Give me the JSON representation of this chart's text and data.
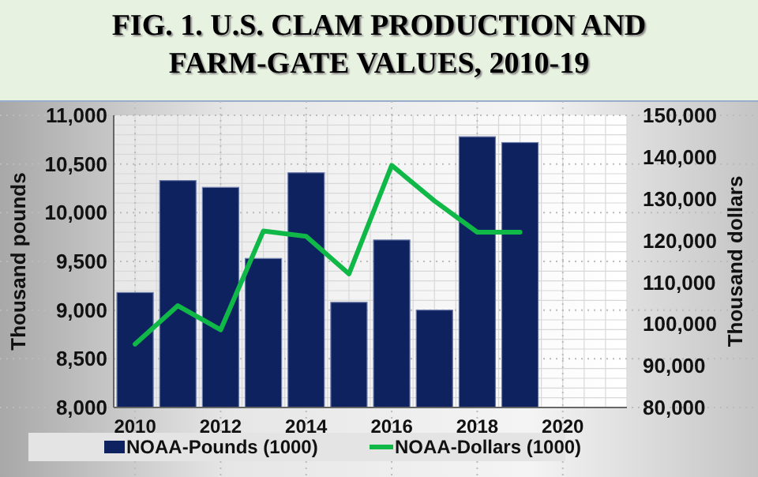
{
  "chart_data": {
    "type": "bar",
    "title": "FIG. 1. U.S. CLAM PRODUCTION AND FARM-GATE VALUES, 2010-19",
    "ylabel": "Thousand pounds",
    "y2label": "Thousand dollars",
    "x": [
      2010,
      2011,
      2012,
      2013,
      2014,
      2015,
      2016,
      2017,
      2018,
      2019
    ],
    "xlim": [
      2009.5,
      2021.5
    ],
    "xticks": [
      2010,
      2012,
      2014,
      2016,
      2018,
      2020
    ],
    "ylim": [
      8000,
      11000
    ],
    "yticks": [
      {
        "value": 8000,
        "label": "8,000"
      },
      {
        "value": 8500,
        "label": "8,500"
      },
      {
        "value": 9000,
        "label": "9,000"
      },
      {
        "value": 9500,
        "label": "9,500"
      },
      {
        "value": 10000,
        "label": "10,000"
      },
      {
        "value": 10500,
        "label": "10,500"
      },
      {
        "value": 11000,
        "label": "11,000"
      }
    ],
    "y2lim": [
      80000,
      150000
    ],
    "y2ticks": [
      {
        "value": 80000,
        "label": "80,000"
      },
      {
        "value": 90000,
        "label": "90,000"
      },
      {
        "value": 100000,
        "label": "100,000"
      },
      {
        "value": 110000,
        "label": "110,000"
      },
      {
        "value": 120000,
        "label": "120,000"
      },
      {
        "value": 130000,
        "label": "130,000"
      },
      {
        "value": 140000,
        "label": "140,000"
      },
      {
        "value": 150000,
        "label": "150,000"
      }
    ],
    "series": [
      {
        "name": "NOAA-Pounds (1000)",
        "color": "#0f2260",
        "values": [
          9180,
          10330,
          10260,
          9530,
          10410,
          9080,
          9720,
          9000,
          10780,
          10720
        ]
      },
      {
        "name": "NOAA-Dollars (1000)",
        "type": "line",
        "axis": "y2",
        "color": "#10b848",
        "values": [
          95200,
          104400,
          98600,
          122300,
          121000,
          112000,
          138000,
          129500,
          122000,
          122000
        ]
      }
    ],
    "grid": true,
    "legend": "bottom"
  }
}
